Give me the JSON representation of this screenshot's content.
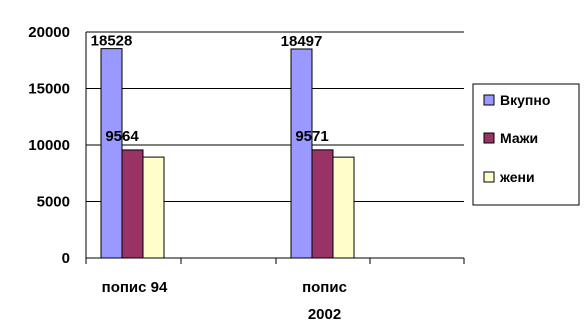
{
  "chart_data": {
    "type": "bar",
    "title": "",
    "xlabel": "",
    "ylabel": "",
    "categories": [
      "попис 94",
      "попис\n2002"
    ],
    "series": [
      {
        "name": "Вкупно",
        "values": [
          18528,
          18497
        ],
        "color": "#9999ff"
      },
      {
        "name": "Мажи",
        "values": [
          9564,
          9571
        ],
        "color": "#993366"
      },
      {
        "name": "жени",
        "values": [
          8930,
          8926
        ],
        "color": "#ffffcc"
      }
    ],
    "data_labels": {
      "series_index": 0,
      "texts": [
        "18528",
        "18497"
      ],
      "aux_series_index": 1,
      "aux_texts": [
        "9564",
        "9571"
      ]
    },
    "ylim": [
      0,
      20000
    ],
    "yticks": [
      0,
      5000,
      10000,
      15000,
      20000
    ],
    "grid": true,
    "legend": "right"
  }
}
